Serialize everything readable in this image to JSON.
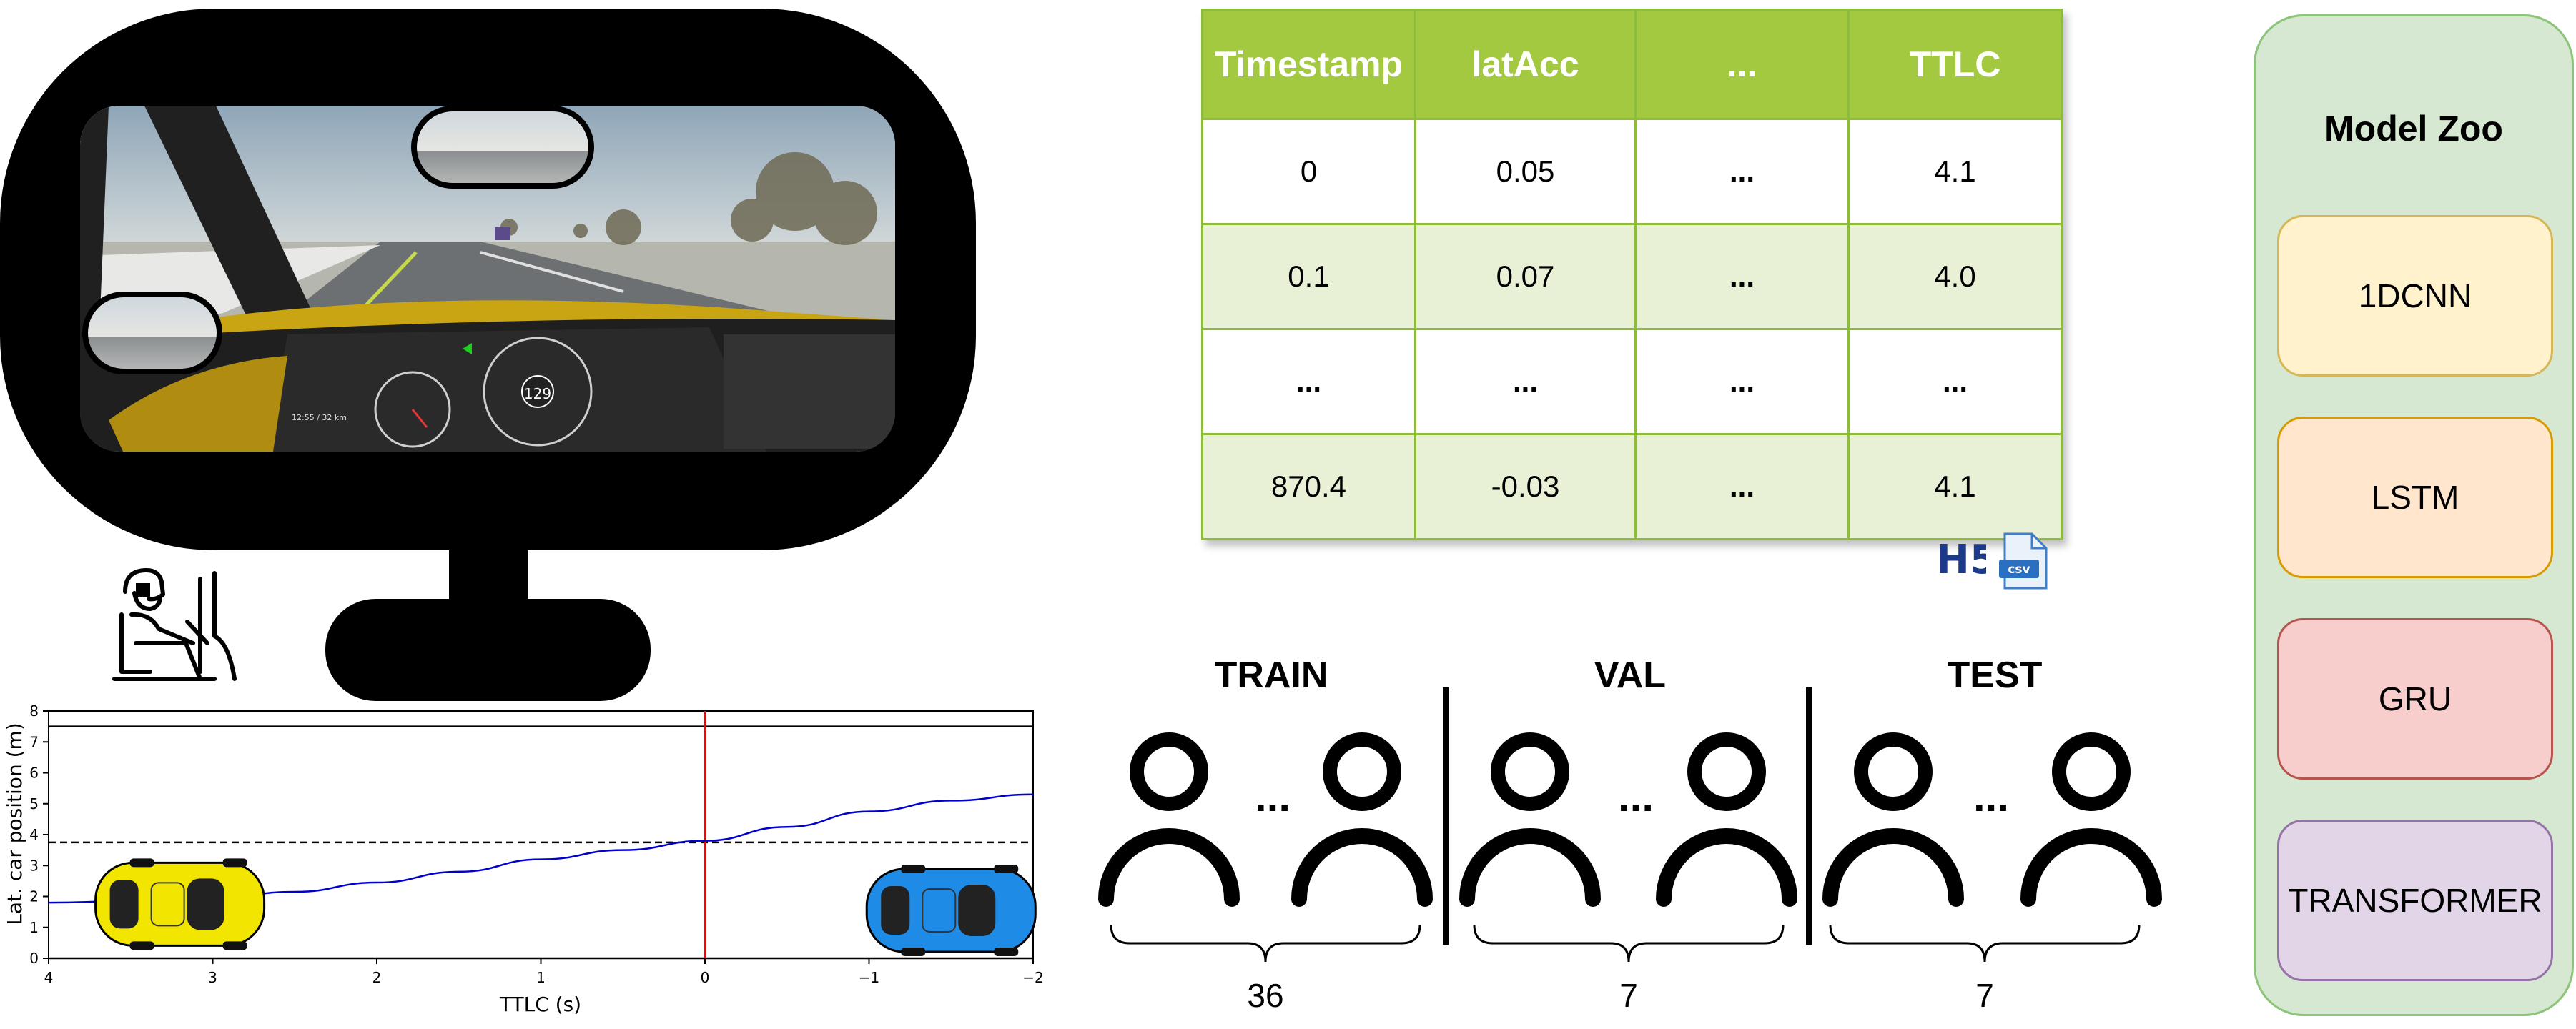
{
  "table": {
    "headers": [
      "Timestamp",
      "latAcc",
      "...",
      "TTLC"
    ],
    "rows": [
      [
        "0",
        "0.05",
        "...",
        "4.1"
      ],
      [
        "0.1",
        "0.07",
        "...",
        "4.0"
      ],
      [
        "...",
        "...",
        "...",
        "..."
      ],
      [
        "870.4",
        "-0.03",
        "...",
        "4.1"
      ]
    ]
  },
  "file_icons": {
    "h5": "H5",
    "csv": "csv"
  },
  "cockpit": {
    "speed": "129",
    "info": "12:55 / 32 km"
  },
  "split": {
    "train": {
      "title": "TRAIN",
      "count": "36"
    },
    "val": {
      "title": "VAL",
      "count": "7"
    },
    "test": {
      "title": "TEST",
      "count": "7"
    },
    "ellipsis": "..."
  },
  "model_zoo": {
    "title": "Model Zoo",
    "models": [
      {
        "name": "1DCNN",
        "fill": "#fff2cc",
        "border": "#d6b656"
      },
      {
        "name": "LSTM",
        "fill": "#ffe6cc",
        "border": "#d79b00"
      },
      {
        "name": "GRU",
        "fill": "#f8cecc",
        "border": "#b85450"
      },
      {
        "name": "TRANSFORMER",
        "fill": "#e1d5e7",
        "border": "#9673a6"
      }
    ]
  },
  "chart_data": {
    "type": "line",
    "xlabel": "TTLC (s)",
    "ylabel": "Lat. car position (m)",
    "xlim": [
      4,
      -2
    ],
    "ylim": [
      0,
      8
    ],
    "xticks": [
      "4",
      "3",
      "2",
      "1",
      "0",
      "−1",
      "−2"
    ],
    "yticks": [
      "0",
      "1",
      "2",
      "3",
      "4",
      "5",
      "6",
      "7",
      "8"
    ],
    "series": [
      {
        "x": [
          4,
          3.5,
          3,
          2.5,
          2,
          1.5,
          1,
          0.5,
          0,
          -0.5,
          -1,
          -1.5,
          -2
        ],
        "y": [
          1.8,
          1.85,
          1.95,
          2.15,
          2.45,
          2.8,
          3.2,
          3.5,
          3.8,
          4.25,
          4.75,
          5.1,
          5.3
        ],
        "color": "#0000cc"
      }
    ],
    "hlines": [
      {
        "y": 0,
        "style": "solid",
        "color": "#000000"
      },
      {
        "y": 3.75,
        "style": "dashed",
        "color": "#000000"
      },
      {
        "y": 7.5,
        "style": "solid",
        "color": "#000000"
      }
    ],
    "vline": {
      "x": 0,
      "color": "#ff0000"
    },
    "cars": [
      {
        "x": 3.2,
        "y": 1.75,
        "color": "#f2e600"
      },
      {
        "x": -1.5,
        "y": 1.55,
        "color": "#1e8be6"
      }
    ]
  }
}
